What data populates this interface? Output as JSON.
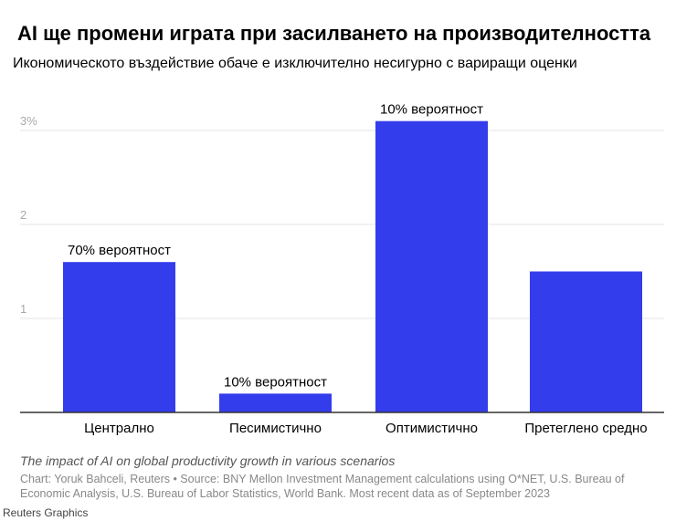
{
  "title": "AI ще промени играта при засилването на производителността",
  "subtitle": "Икономическото въздействие обаче е изключително несигурно с вариращи оценки",
  "chart_data": {
    "type": "bar",
    "categories": [
      "Централно",
      "Песимистично",
      "Оптимистично",
      "Претеглено средно"
    ],
    "values": [
      1.6,
      0.2,
      3.1,
      1.5
    ],
    "data_labels": [
      "70% вероятност",
      "10% вероятност",
      "10% вероятност",
      ""
    ],
    "yticks": [
      1,
      2,
      3
    ],
    "ytick_labels": [
      "1",
      "2",
      "3%"
    ],
    "ylim": [
      0,
      3.1
    ],
    "grid": true,
    "bar_color": "#343deb"
  },
  "caption": "The impact of AI on global productivity growth in various scenarios",
  "source": "Chart: Yoruk Bahceli, Reuters • Source: BNY Mellon Investment Management calculations using O*NET, U.S. Bureau of Economic Analysis, U.S. Bureau of Labor Statistics, World Bank. Most recent data as of September 2023",
  "credit": "Reuters Graphics"
}
